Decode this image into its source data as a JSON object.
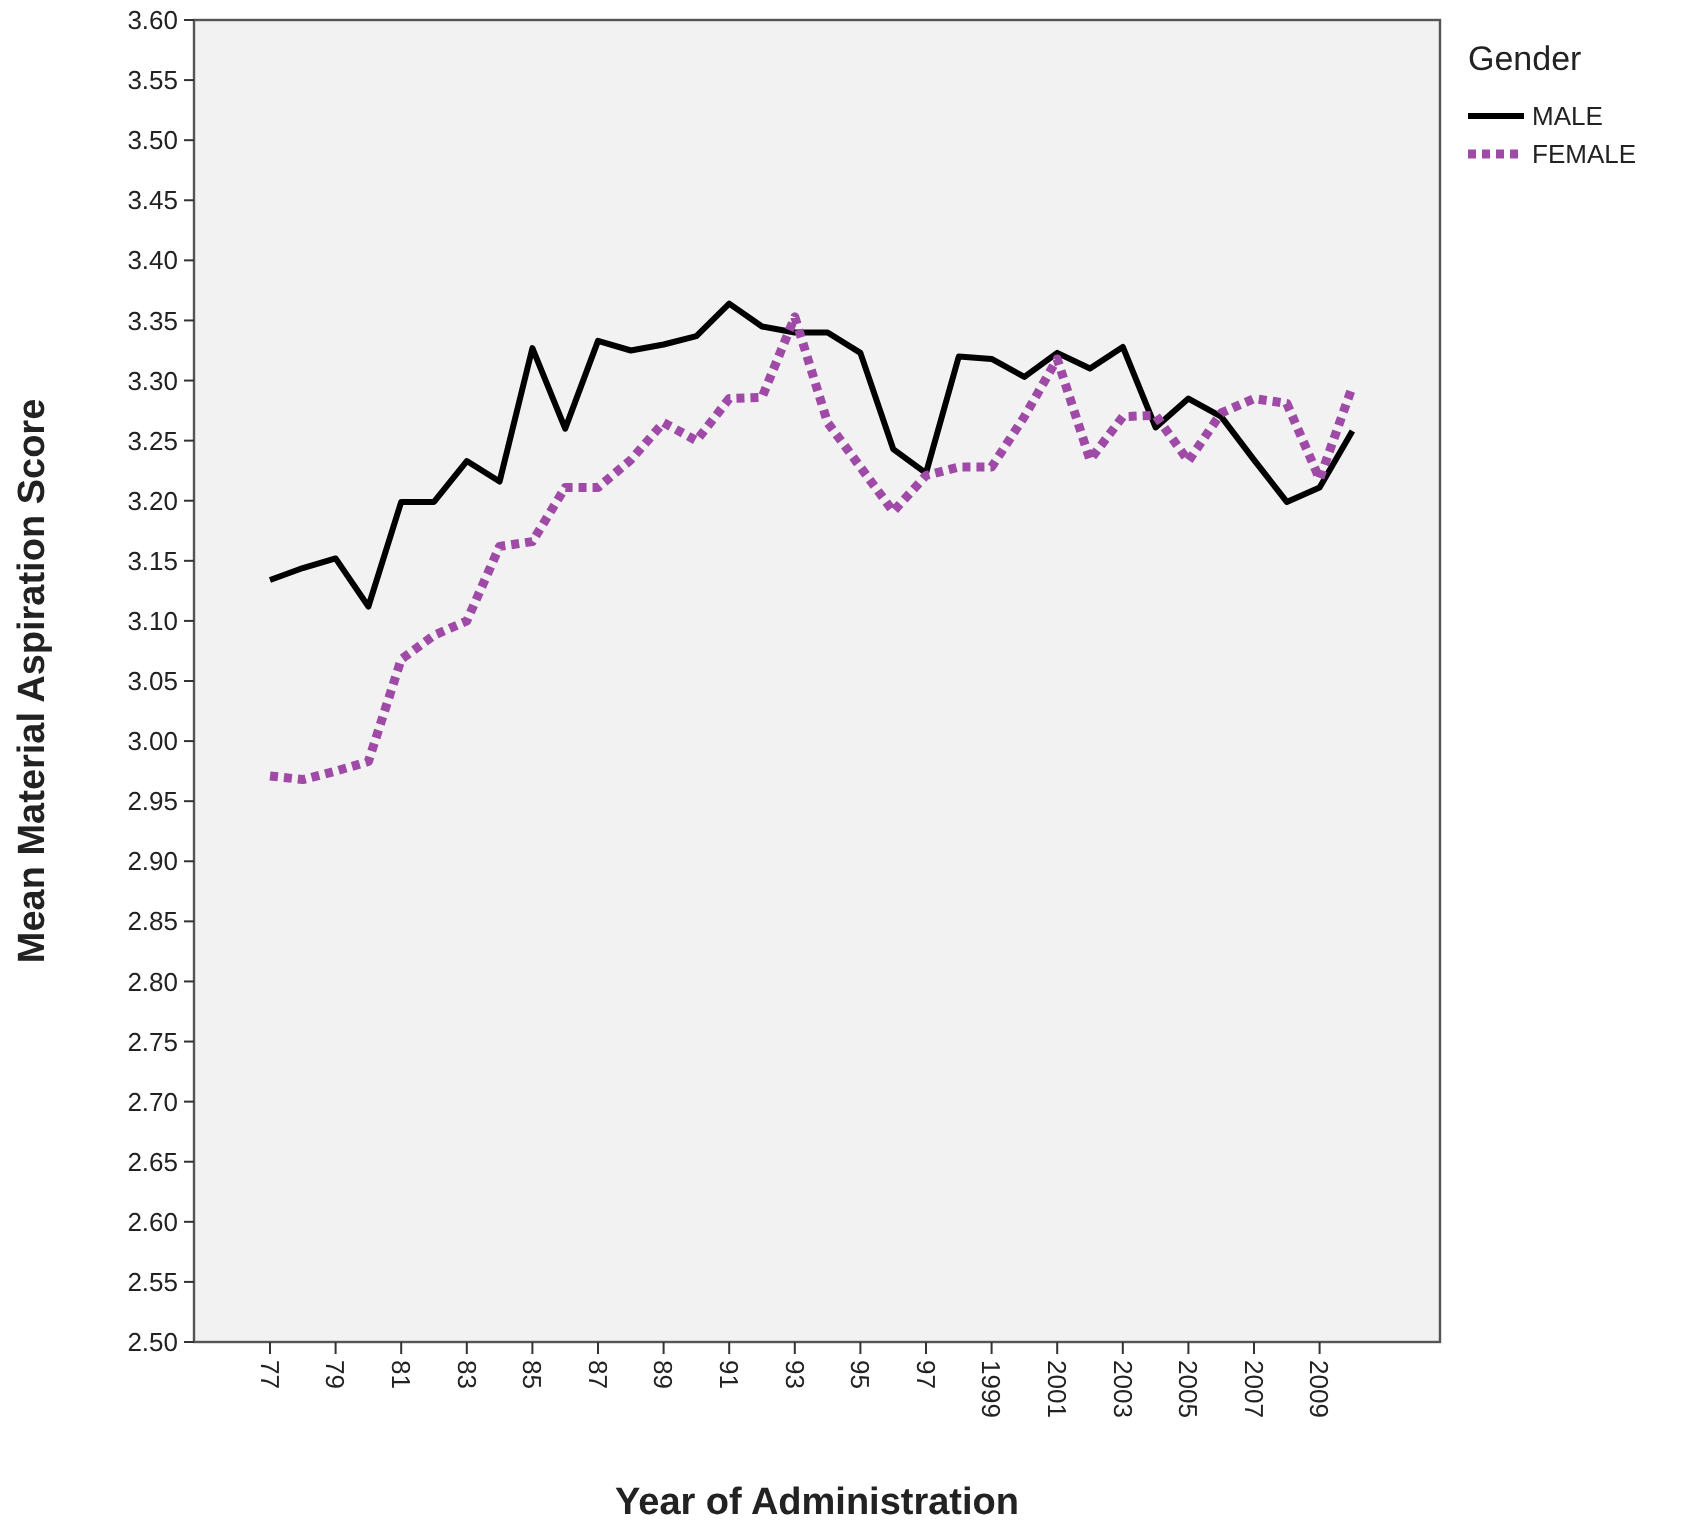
{
  "chart_data": {
    "type": "line",
    "xlabel": "Year of Administration",
    "ylabel": "Mean Material Aspiration Score",
    "legend_title": "Gender",
    "legend": "top right",
    "grid": false,
    "categories": [
      "77",
      null,
      "79",
      null,
      "81",
      null,
      "83",
      null,
      "85",
      null,
      "87",
      null,
      "89",
      null,
      "91",
      null,
      "93",
      null,
      "95",
      null,
      "97",
      null,
      "1999",
      null,
      "2001",
      null,
      "2003",
      null,
      "2005",
      null,
      "2007",
      null,
      "2009",
      null
    ],
    "ylim": [
      2.5,
      3.6
    ],
    "yticks": [
      {
        "value": 2.5,
        "label": "2.50"
      },
      {
        "value": 2.55,
        "label": "2.55"
      },
      {
        "value": 2.6,
        "label": "2.60"
      },
      {
        "value": 2.65,
        "label": "2.65"
      },
      {
        "value": 2.7,
        "label": "2.70"
      },
      {
        "value": 2.75,
        "label": "2.75"
      },
      {
        "value": 2.8,
        "label": "2.80"
      },
      {
        "value": 2.85,
        "label": "2.85"
      },
      {
        "value": 2.9,
        "label": "2.90"
      },
      {
        "value": 2.95,
        "label": "2.95"
      },
      {
        "value": 3.0,
        "label": "3.00"
      },
      {
        "value": 3.05,
        "label": "3.05"
      },
      {
        "value": 3.1,
        "label": "3.10"
      },
      {
        "value": 3.15,
        "label": "3.15"
      },
      {
        "value": 3.2,
        "label": "3.20"
      },
      {
        "value": 3.25,
        "label": "3.25"
      },
      {
        "value": 3.3,
        "label": "3.30"
      },
      {
        "value": 3.35,
        "label": "3.35"
      },
      {
        "value": 3.4,
        "label": "3.40"
      },
      {
        "value": 3.45,
        "label": "3.45"
      },
      {
        "value": 3.5,
        "label": "3.50"
      },
      {
        "value": 3.55,
        "label": "3.55"
      },
      {
        "value": 3.6,
        "label": "3.60"
      }
    ],
    "series": [
      {
        "name": "MALE",
        "color": "#000000",
        "line_style": "solid",
        "values": [
          3.134,
          3.144,
          3.152,
          3.112,
          3.199,
          3.199,
          3.233,
          3.216,
          3.327,
          3.26,
          3.333,
          3.325,
          3.33,
          3.337,
          3.364,
          3.345,
          3.34,
          3.34,
          3.323,
          3.243,
          3.223,
          3.32,
          3.318,
          3.303,
          3.323,
          3.31,
          3.328,
          3.261,
          3.285,
          3.27,
          3.234,
          3.199,
          3.211,
          3.258
        ]
      },
      {
        "name": "FEMALE",
        "color": "#9e4aa6",
        "line_style": "dotted",
        "values": [
          2.971,
          2.968,
          2.975,
          2.983,
          3.068,
          3.088,
          3.1,
          3.162,
          3.166,
          3.211,
          3.211,
          3.234,
          3.265,
          3.25,
          3.285,
          3.286,
          3.353,
          3.265,
          3.228,
          3.191,
          3.221,
          3.228,
          3.228,
          3.27,
          3.318,
          3.234,
          3.27,
          3.271,
          3.233,
          3.273,
          3.285,
          3.281,
          3.218,
          3.295
        ]
      }
    ]
  }
}
